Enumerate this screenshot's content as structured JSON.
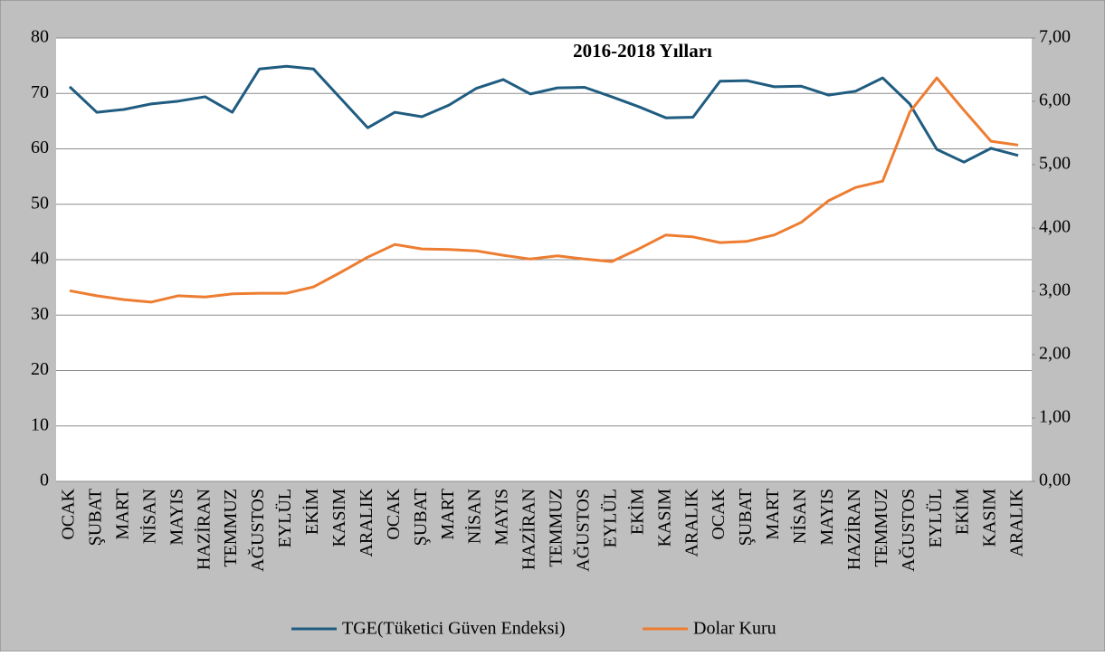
{
  "chart_data": {
    "type": "line",
    "title": "2016-2018 Yılları",
    "categories": [
      "OCAK",
      "ŞUBAT",
      "MART",
      "NİSAN",
      "MAYIS",
      "HAZİRAN",
      "TEMMUZ",
      "AĞUSTOS",
      "EYLÜL",
      "EKİM",
      "KASIM",
      "ARALIK",
      "OCAK",
      "ŞUBAT",
      "MART",
      "NİSAN",
      "MAYIS",
      "HAZİRAN",
      "TEMMUZ",
      "AĞUSTOS",
      "EYLÜL",
      "EKİM",
      "KASIM",
      "ARALIK",
      "OCAK",
      "ŞUBAT",
      "MART",
      "NİSAN",
      "MAYIS",
      "HAZİRAN",
      "TEMMUZ",
      "AĞUSTOS",
      "EYLÜL",
      "EKİM",
      "KASIM",
      "ARALIK"
    ],
    "series": [
      {
        "name": "TGE(Tüketici Güven Endeksi)",
        "color": "#1f5c80",
        "values": [
          71.2,
          66.6,
          67.1,
          68.1,
          68.6,
          69.4,
          66.6,
          74.4,
          74.9,
          74.4,
          69.1,
          63.8,
          66.6,
          65.8,
          67.9,
          70.9,
          72.5,
          69.9,
          71.0,
          71.1,
          69.4,
          67.6,
          65.6,
          65.7,
          72.2,
          72.3,
          71.2,
          71.3,
          69.7,
          70.4,
          72.8,
          68.1,
          59.9,
          57.6,
          60.1,
          58.8
        ]
      },
      {
        "name": "Dolar Kuru",
        "color": "#ed7d31",
        "axis": "y2",
        "values": [
          3.01,
          2.93,
          2.87,
          2.83,
          2.93,
          2.91,
          2.96,
          2.97,
          2.97,
          3.07,
          3.3,
          3.54,
          3.74,
          3.67,
          3.66,
          3.64,
          3.57,
          3.51,
          3.56,
          3.51,
          3.47,
          3.67,
          3.89,
          3.86,
          3.77,
          3.79,
          3.89,
          4.09,
          4.43,
          4.64,
          4.74,
          5.83,
          6.37,
          5.86,
          5.37,
          5.31
        ]
      }
    ],
    "ylim": [
      0,
      80
    ],
    "yticks": [
      0,
      10,
      20,
      30,
      40,
      50,
      60,
      70,
      80
    ],
    "y2lim": [
      0,
      7
    ],
    "y2ticks": [
      {
        "value": 0,
        "label": "0,00"
      },
      {
        "value": 1,
        "label": "1,00"
      },
      {
        "value": 2,
        "label": "2,00"
      },
      {
        "value": 3,
        "label": "3,00"
      },
      {
        "value": 4,
        "label": "4,00"
      },
      {
        "value": 5,
        "label": "5,00"
      },
      {
        "value": 6,
        "label": "6,00"
      },
      {
        "value": 7,
        "label": "7,00"
      }
    ],
    "grid": true,
    "legend": "bottom"
  }
}
